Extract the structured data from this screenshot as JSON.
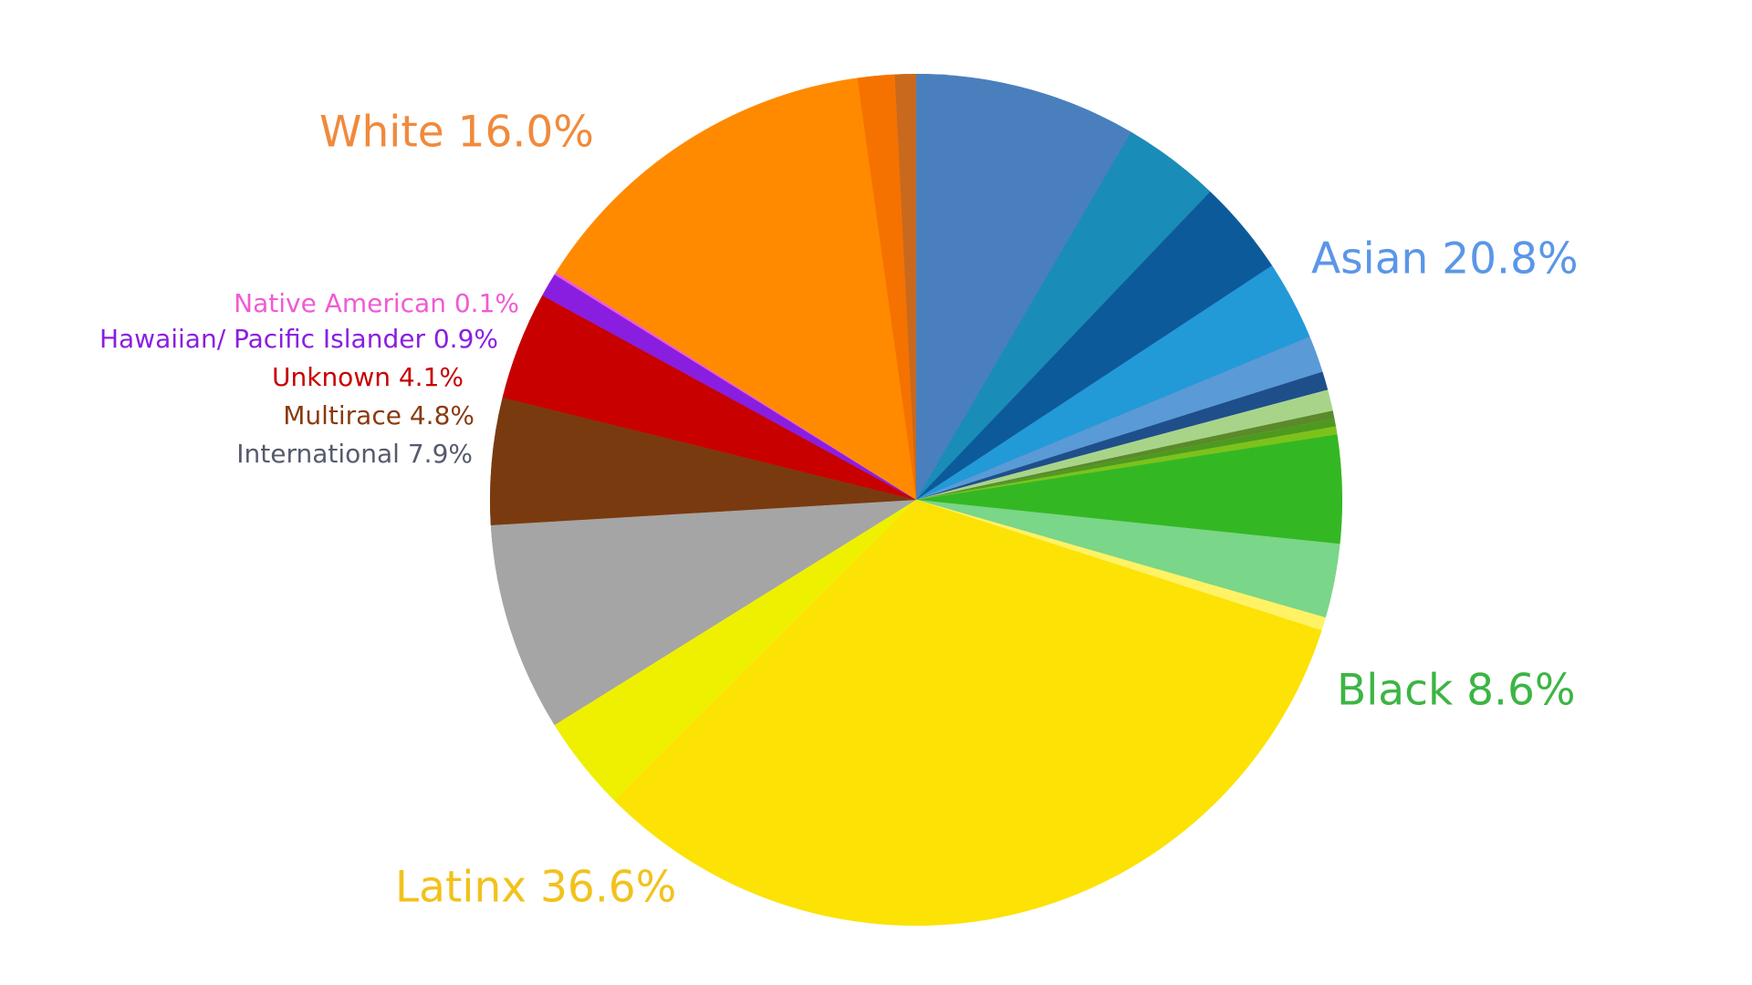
{
  "chart_data": {
    "type": "pie",
    "categories": [
      "Asian",
      "Black",
      "Latinx",
      "International",
      "Multirace",
      "Unknown",
      "Hawaiian/ Pacific Islander",
      "Native American",
      "White"
    ],
    "values": [
      20.8,
      8.6,
      36.6,
      7.9,
      4.8,
      4.1,
      0.9,
      0.1,
      16.0
    ],
    "value_labels": [
      "Asian 20.8%",
      "Black 8.6%",
      "Latinx 36.6%",
      "International 7.9%",
      "Multirace 4.8%",
      "Unknown 4.1%",
      "Hawaiian/ Pacific Islander 0.9%",
      "Native American 0.1%",
      "White 16.0%"
    ],
    "label_colors": [
      "#5b96e8",
      "#3cb544",
      "#f2c21b",
      "#555b6e",
      "#8a3a10",
      "#c80000",
      "#8a1ee0",
      "#f05ad6",
      "#f08a3c"
    ],
    "parts": [
      [
        {
          "color": "#4a7fbd",
          "value": 8.4
        },
        {
          "color": "#1a8cb8",
          "value": 3.7
        },
        {
          "color": "#0d5a9a",
          "value": 3.6
        },
        {
          "color": "#229ad8",
          "value": 3.0
        },
        {
          "color": "#5a9ad6",
          "value": 1.4
        },
        {
          "color": "#1f4f8a",
          "value": 0.7
        }
      ],
      [
        {
          "color": "#a8d48a",
          "value": 0.8
        },
        {
          "color": "#5a8a2a",
          "value": 0.3
        },
        {
          "color": "#4d9a1f",
          "value": 0.3
        },
        {
          "color": "#7dc21a",
          "value": 0.3
        },
        {
          "color": "#33b823",
          "value": 4.1
        },
        {
          "color": "#7ad688",
          "value": 2.8
        }
      ],
      [
        {
          "color": "#fff264",
          "value": 0.5
        },
        {
          "color": "#fce205",
          "value": 32.5
        },
        {
          "color": "#eff000",
          "value": 3.6
        }
      ],
      [
        {
          "color": "#a5a5a5",
          "value": 7.9
        }
      ],
      [
        {
          "color": "#7a3a10",
          "value": 4.8
        }
      ],
      [
        {
          "color": "#c80000",
          "value": 4.1
        }
      ],
      [
        {
          "color": "#8a1ee0",
          "value": 0.9
        }
      ],
      [
        {
          "color": "#f05ad6",
          "value": 0.1
        }
      ],
      [
        {
          "color": "#ff8a00",
          "value": 13.8
        },
        {
          "color": "#f57200",
          "value": 1.4
        },
        {
          "color": "#c8691e",
          "value": 0.8
        }
      ]
    ]
  }
}
